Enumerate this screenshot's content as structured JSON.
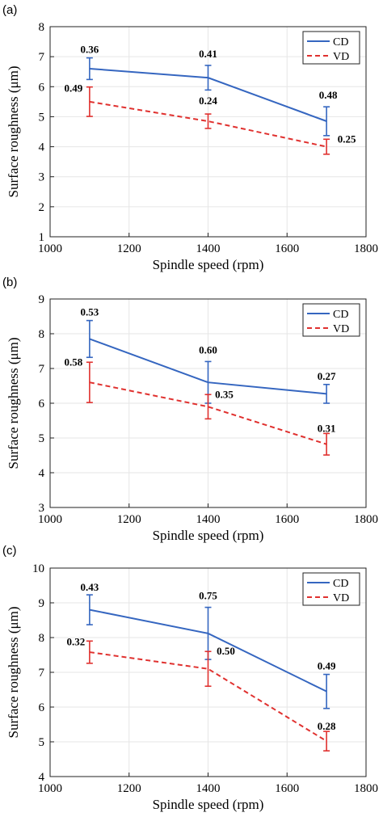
{
  "colors": {
    "CD": "#3566c0",
    "VD": "#e0312f",
    "grid": "#e6e6e6",
    "axis": "#000000"
  },
  "chart_data": [
    {
      "panel": "(a)",
      "type": "line",
      "xlabel": "Spindle speed (rpm)",
      "ylabel": "Surface roughness (μm)",
      "xlim": [
        1000,
        1800
      ],
      "ylim": [
        1,
        8
      ],
      "xticks": [
        1000,
        1200,
        1400,
        1600,
        1800
      ],
      "yticks": [
        1,
        2,
        3,
        4,
        5,
        6,
        7,
        8
      ],
      "grid": true,
      "legend_position": "top-right",
      "x": [
        1100,
        1400,
        1700
      ],
      "series": [
        {
          "name": "CD",
          "style": "solid",
          "values": [
            6.6,
            6.3,
            4.85
          ],
          "errors": [
            0.36,
            0.41,
            0.48
          ],
          "labels": [
            "0.36",
            "0.41",
            "0.48"
          ]
        },
        {
          "name": "VD",
          "style": "dashed",
          "values": [
            5.5,
            4.85,
            4.0
          ],
          "errors": [
            0.49,
            0.24,
            0.25
          ],
          "labels": [
            "0.49",
            "0.24",
            "0.25"
          ]
        }
      ]
    },
    {
      "panel": "(b)",
      "type": "line",
      "xlabel": "Spindle speed (rpm)",
      "ylabel": "Surface roughness (μm)",
      "xlim": [
        1000,
        1800
      ],
      "ylim": [
        3,
        9
      ],
      "xticks": [
        1000,
        1200,
        1400,
        1600,
        1800
      ],
      "yticks": [
        3,
        4,
        5,
        6,
        7,
        8,
        9
      ],
      "grid": true,
      "legend_position": "top-right",
      "x": [
        1100,
        1400,
        1700
      ],
      "series": [
        {
          "name": "CD",
          "style": "solid",
          "values": [
            7.85,
            6.6,
            6.27
          ],
          "errors": [
            0.53,
            0.6,
            0.27
          ],
          "labels": [
            "0.53",
            "0.60",
            "0.27"
          ]
        },
        {
          "name": "VD",
          "style": "dashed",
          "values": [
            6.6,
            5.9,
            4.82
          ],
          "errors": [
            0.58,
            0.35,
            0.31
          ],
          "labels": [
            "0.58",
            "0.35",
            "0.31"
          ]
        }
      ]
    },
    {
      "panel": "(c)",
      "type": "line",
      "xlabel": "Spindle speed (rpm)",
      "ylabel": "Surface roughness (μm)",
      "xlim": [
        1000,
        1800
      ],
      "ylim": [
        4,
        10
      ],
      "xticks": [
        1000,
        1200,
        1400,
        1600,
        1800
      ],
      "yticks": [
        4,
        5,
        6,
        7,
        8,
        9,
        10
      ],
      "grid": true,
      "legend_position": "top-right",
      "x": [
        1100,
        1400,
        1700
      ],
      "series": [
        {
          "name": "CD",
          "style": "solid",
          "values": [
            8.8,
            8.12,
            6.45
          ],
          "errors": [
            0.43,
            0.75,
            0.49
          ],
          "labels": [
            "0.43",
            "0.75",
            "0.49"
          ]
        },
        {
          "name": "VD",
          "style": "dashed",
          "values": [
            7.58,
            7.1,
            5.02
          ],
          "errors": [
            0.32,
            0.5,
            0.28
          ],
          "labels": [
            "0.32",
            "0.50",
            "0.28"
          ]
        }
      ]
    }
  ]
}
